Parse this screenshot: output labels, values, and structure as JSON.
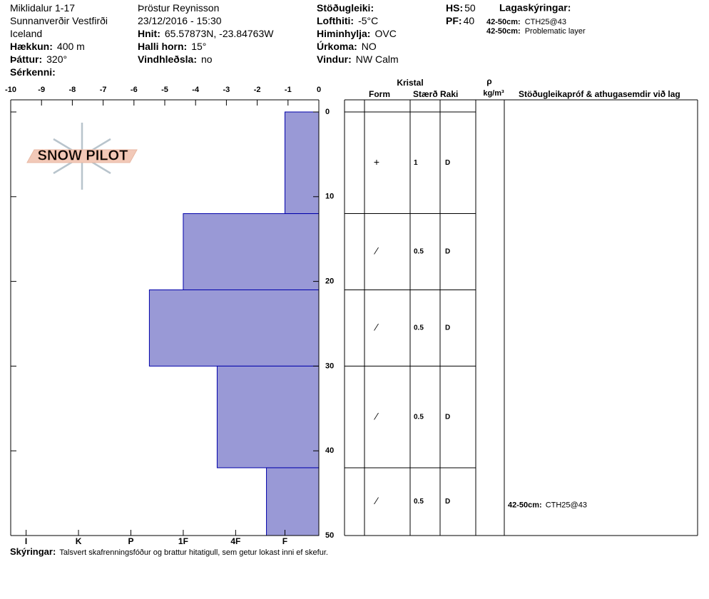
{
  "header": {
    "columns": [
      [
        {
          "value": "Miklidalur 1-17"
        },
        {
          "value": "Sunnanverðir Vestfirði"
        },
        {
          "value": "Iceland"
        },
        {
          "label": "Hækkun:",
          "value": "400 m"
        },
        {
          "label": "Þáttur:",
          "value": "320°"
        },
        {
          "label": "Sérkenni:"
        }
      ],
      [
        {
          "value": "Þröstur Reynisson"
        },
        {
          "value": "23/12/2016 - 15:30"
        },
        {
          "label": "Hnit:",
          "value": "65.57873N, -23.84763W"
        },
        {
          "label": "Halli horn:",
          "value": "15°"
        },
        {
          "label": "Vindhleðsla:",
          "value": "no"
        }
      ],
      [
        {
          "label": "Stöðugleiki:"
        },
        {
          "label": "Lofthiti:",
          "value": "-5°C"
        },
        {
          "label": "Himinhylja:",
          "value": "OVC"
        },
        {
          "label": "Úrkoma:",
          "value": "NO"
        },
        {
          "label": "Vindur:",
          "value": "NW Calm"
        }
      ],
      [
        {
          "label": "HS:",
          "value": "50"
        },
        {
          "label": "PF:",
          "value": "40"
        }
      ]
    ],
    "notes_title": "Lagaskýringar:",
    "notes": [
      {
        "label": "42-50cm:",
        "value": "CTH25@43"
      },
      {
        "label": "42-50cm:",
        "value": "Problematic layer"
      }
    ]
  },
  "logo": "SNOW PILOT",
  "chart_data": {
    "type": "snow-profile",
    "xlim": [
      -10,
      0
    ],
    "xticks": [
      -10,
      -9,
      -8,
      -7,
      -6,
      -5,
      -4,
      -3,
      -2,
      -1,
      0
    ],
    "hardness_lim": [
      0,
      10
    ],
    "hardness_ticks": [
      {
        "value": 9.5,
        "label": "I"
      },
      {
        "value": 7.8,
        "label": "K"
      },
      {
        "value": 6.1,
        "label": "P"
      },
      {
        "value": 4.4,
        "label": "1F"
      },
      {
        "value": 2.7,
        "label": "4F"
      },
      {
        "value": 1.1,
        "label": "F"
      }
    ],
    "ylim": [
      0,
      50
    ],
    "yticks": [
      0,
      10,
      20,
      30,
      40,
      50
    ],
    "color": "#9999d6",
    "edge_color": "#0000aa",
    "columns": {
      "group": "Kristal",
      "form": "Form",
      "size": "Stærð",
      "moisture": "Raki",
      "density_symbol": "ρ",
      "density_unit": "kg/m³",
      "comments": "Stöðugleikapróf & athugasemdir við lag"
    },
    "layers": [
      {
        "top": 0,
        "bottom": 12,
        "hardness": 1.1,
        "form": "+",
        "size": 1,
        "moisture": "D"
      },
      {
        "top": 12,
        "bottom": 21,
        "hardness": 4.4,
        "form": "⁄",
        "size": 0.5,
        "moisture": "D"
      },
      {
        "top": 21,
        "bottom": 30,
        "hardness": 5.5,
        "form": "⁄",
        "size": 0.5,
        "moisture": "D"
      },
      {
        "top": 30,
        "bottom": 42,
        "hardness": 3.3,
        "form": "⁄",
        "size": 0.5,
        "moisture": "D"
      },
      {
        "top": 42,
        "bottom": 50,
        "hardness": 1.7,
        "form": "⁄",
        "size": 0.5,
        "moisture": "D",
        "comment_label": "42-50cm:",
        "comment": "CTH25@43"
      }
    ]
  },
  "footer": {
    "label": "Skýringar:",
    "text": "Talsvert skafrenningsfóður og brattur hitatigull, sem getur lokast inni ef skefur."
  }
}
